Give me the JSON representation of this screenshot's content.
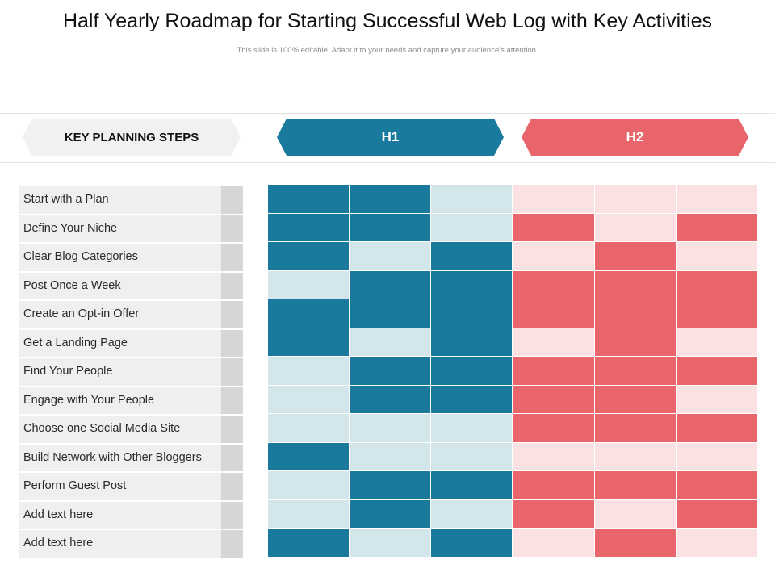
{
  "title": "Half Yearly Roadmap for Starting Successful Web Log with Key Activities",
  "subtitle": "This slide is 100% editable. Adapt it to your needs and capture your audience's attention.",
  "headers": {
    "key": "KEY PLANNING STEPS",
    "h1": "H1",
    "h2": "H2"
  },
  "colors": {
    "h1_dark": "#1a7a9e",
    "h1_light": "#d3e6ec",
    "h2_dark": "#e8666b",
    "h2_light": "#fbe1e2",
    "step_bg": "#efefef",
    "step_tab": "#d6d6d6"
  },
  "rows": [
    {
      "label": "Start with a Plan",
      "h1": [
        1,
        1,
        0
      ],
      "h2": [
        0,
        0,
        0
      ]
    },
    {
      "label": "Define Your Niche",
      "h1": [
        1,
        1,
        0
      ],
      "h2": [
        1,
        0,
        1
      ]
    },
    {
      "label": "Clear Blog Categories",
      "h1": [
        1,
        0,
        1
      ],
      "h2": [
        0,
        1,
        0
      ]
    },
    {
      "label": "Post Once a Week",
      "h1": [
        0,
        1,
        1
      ],
      "h2": [
        1,
        1,
        1
      ]
    },
    {
      "label": "Create an Opt-in Offer",
      "h1": [
        1,
        1,
        1
      ],
      "h2": [
        1,
        1,
        1
      ]
    },
    {
      "label": "Get a Landing Page",
      "h1": [
        1,
        0,
        1
      ],
      "h2": [
        0,
        1,
        0
      ]
    },
    {
      "label": "Find Your People",
      "h1": [
        0,
        1,
        1
      ],
      "h2": [
        1,
        1,
        1
      ]
    },
    {
      "label": "Engage with Your People",
      "h1": [
        0,
        1,
        1
      ],
      "h2": [
        1,
        1,
        0
      ]
    },
    {
      "label": "Choose one Social Media Site",
      "h1": [
        0,
        0,
        0
      ],
      "h2": [
        1,
        1,
        1
      ]
    },
    {
      "label": "Build Network with Other Bloggers",
      "h1": [
        1,
        0,
        0
      ],
      "h2": [
        0,
        0,
        0
      ]
    },
    {
      "label": "Perform Guest Post",
      "h1": [
        0,
        1,
        1
      ],
      "h2": [
        1,
        1,
        1
      ]
    },
    {
      "label": "Add text here",
      "h1": [
        0,
        1,
        0
      ],
      "h2": [
        1,
        0,
        1
      ]
    },
    {
      "label": "Add text here",
      "h1": [
        1,
        0,
        1
      ],
      "h2": [
        0,
        1,
        0
      ]
    }
  ]
}
